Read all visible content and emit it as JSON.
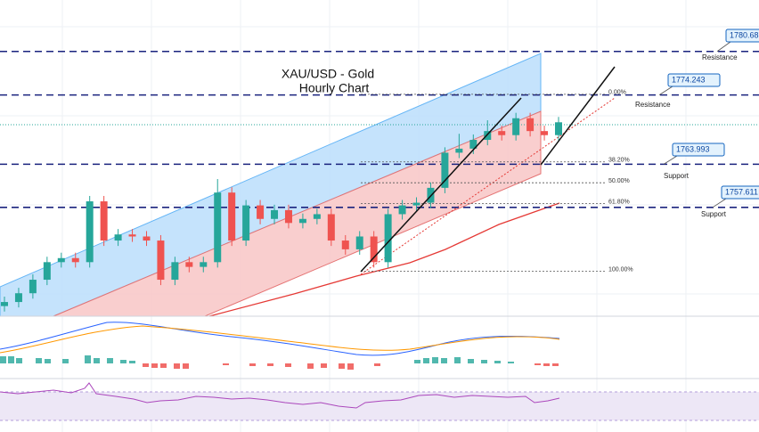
{
  "chart_data": {
    "type": "candlestick",
    "title_lines": [
      "XAU/USD - Gold",
      "Hourly Chart"
    ],
    "ylim": [
      1741.5,
      1788.3
    ],
    "up_color": "#26a69a",
    "down_color": "#ef5350",
    "open": [
      1743.0,
      1743.6,
      1744.9,
      1746.9,
      1749.5,
      1750.1,
      1749.5,
      1758.5,
      1752.7,
      1753.6,
      1753.3,
      1752.7,
      1746.9,
      1749.5,
      1748.8,
      1749.5,
      1759.8,
      1752.7,
      1757.9,
      1755.9,
      1757.2,
      1755.3,
      1755.9,
      1756.6,
      1752.7,
      1751.4,
      1753.3,
      1749.5,
      1756.6,
      1757.9,
      1758.3,
      1760.5,
      1765.7,
      1766.3,
      1767.6,
      1768.9,
      1768.3,
      1770.8,
      1768.9,
      1768.3
    ],
    "high": [
      1744.4,
      1745.7,
      1747.7,
      1750.3,
      1750.9,
      1750.9,
      1759.3,
      1759.3,
      1754.4,
      1754.4,
      1754.1,
      1753.5,
      1750.3,
      1750.3,
      1750.3,
      1761.8,
      1760.6,
      1758.7,
      1758.7,
      1758.0,
      1758.0,
      1756.7,
      1757.4,
      1757.4,
      1753.5,
      1754.1,
      1754.1,
      1757.4,
      1758.7,
      1759.1,
      1761.3,
      1766.5,
      1768.5,
      1768.4,
      1770.5,
      1769.7,
      1771.6,
      1771.6,
      1769.7,
      1771.0
    ],
    "low": [
      1742.2,
      1742.8,
      1744.1,
      1746.1,
      1748.7,
      1748.7,
      1748.7,
      1751.9,
      1751.9,
      1752.5,
      1751.9,
      1746.1,
      1746.1,
      1748.0,
      1748.0,
      1748.7,
      1751.9,
      1751.9,
      1755.1,
      1755.1,
      1754.5,
      1754.5,
      1755.1,
      1751.9,
      1750.6,
      1750.6,
      1748.7,
      1748.7,
      1755.8,
      1757.1,
      1757.5,
      1759.7,
      1764.9,
      1765.5,
      1766.8,
      1767.5,
      1767.5,
      1768.1,
      1767.5,
      1767.5
    ],
    "close": [
      1743.6,
      1744.9,
      1746.9,
      1749.5,
      1750.1,
      1749.5,
      1758.5,
      1752.7,
      1753.6,
      1753.3,
      1752.7,
      1746.9,
      1749.5,
      1748.8,
      1749.5,
      1759.8,
      1752.7,
      1757.9,
      1755.9,
      1757.2,
      1755.3,
      1755.9,
      1756.6,
      1752.7,
      1751.4,
      1753.3,
      1749.5,
      1756.6,
      1757.9,
      1758.3,
      1760.5,
      1765.7,
      1766.3,
      1767.6,
      1768.9,
      1768.3,
      1770.8,
      1768.9,
      1768.3,
      1770.2
    ],
    "levels": [
      {
        "value": 1780.687,
        "tag": "Resistance"
      },
      {
        "value": 1774.243,
        "tag": "Resistance"
      },
      {
        "value": 1763.993,
        "tag": "Support"
      },
      {
        "value": 1757.611,
        "tag": "Support"
      }
    ],
    "level_color": "#1a237e",
    "fib": {
      "high": 1774.34,
      "low": 1748.16,
      "levels": [
        0,
        38.2,
        50,
        61.8,
        100
      ],
      "level_labels": [
        "0.00%",
        "38.20%",
        "50.00%",
        "61.80%",
        "100.00%"
      ]
    }
  }
}
